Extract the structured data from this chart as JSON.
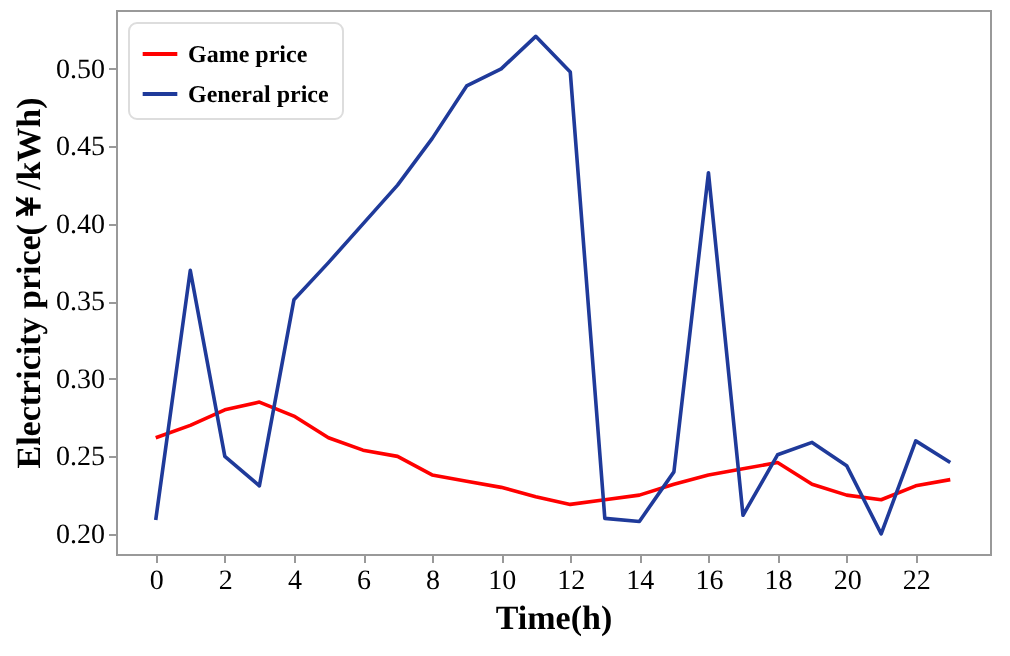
{
  "chart_data": {
    "type": "line",
    "xlabel": "Time(h)",
    "ylabel": "Electricity  price(￥/kWh)",
    "x": [
      0,
      1,
      2,
      3,
      4,
      5,
      6,
      7,
      8,
      9,
      10,
      11,
      12,
      13,
      14,
      15,
      16,
      17,
      18,
      19,
      20,
      21,
      22,
      23
    ],
    "series": [
      {
        "name": "Game price",
        "color": "#ff0000",
        "values": [
          0.262,
          0.27,
          0.28,
          0.285,
          0.276,
          0.262,
          0.254,
          0.25,
          0.238,
          0.234,
          0.23,
          0.224,
          0.219,
          0.222,
          0.225,
          0.232,
          0.238,
          0.242,
          0.246,
          0.232,
          0.225,
          0.222,
          0.231,
          0.235
        ]
      },
      {
        "name": "General price",
        "color": "#1f3a9a",
        "values": [
          0.209,
          0.37,
          0.25,
          0.231,
          0.351,
          0.375,
          0.4,
          0.425,
          0.455,
          0.489,
          0.5,
          0.521,
          0.498,
          0.21,
          0.208,
          0.24,
          0.433,
          0.212,
          0.251,
          0.259,
          0.244,
          0.2,
          0.26,
          0.246
        ]
      }
    ],
    "xlim": [
      -1.15,
      24.15
    ],
    "xticks": [
      0,
      2,
      4,
      6,
      8,
      10,
      12,
      14,
      16,
      18,
      20,
      22
    ],
    "ylim": [
      0.187,
      0.538
    ],
    "yticks": [
      {
        "value": 0.2,
        "label": "0.20"
      },
      0.25,
      {
        "value": 0.3,
        "label": "0.30"
      },
      0.35,
      {
        "value": 0.4,
        "label": "0.40"
      },
      0.45,
      {
        "value": 0.5,
        "label": "0.50"
      }
    ],
    "grid": false,
    "legend": "top left",
    "marker": "none",
    "line_style": "solid"
  }
}
